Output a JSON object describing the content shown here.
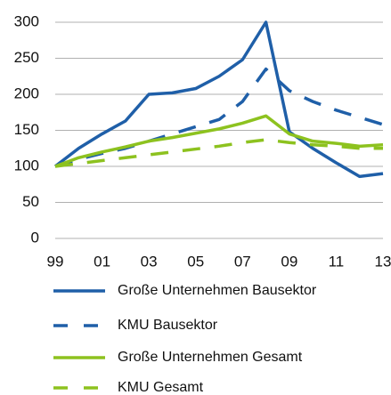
{
  "chart_data": {
    "type": "line",
    "categories": [
      "99",
      null,
      "01",
      null,
      "03",
      null,
      "05",
      null,
      "07",
      null,
      "09",
      null,
      "11",
      null,
      "13"
    ],
    "ylim": [
      0,
      300
    ],
    "yticks": [
      0,
      50,
      100,
      150,
      200,
      250,
      300
    ],
    "grid": true,
    "series": [
      {
        "name": "Große Unternehmen Bausektor",
        "color": "#1f5fa8",
        "dashed": false,
        "values": [
          100,
          125,
          145,
          163,
          200,
          202,
          208,
          225,
          248,
          300,
          148,
          125,
          105,
          86,
          90
        ]
      },
      {
        "name": "KMU Bausektor",
        "color": "#1f5fa8",
        "dashed": true,
        "values": [
          100,
          110,
          118,
          125,
          135,
          145,
          155,
          165,
          190,
          235,
          205,
          190,
          178,
          168,
          158
        ]
      },
      {
        "name": "Große Unternehmen Gesamt",
        "color": "#8dc21f",
        "dashed": false,
        "values": [
          100,
          112,
          120,
          127,
          135,
          140,
          146,
          152,
          160,
          170,
          145,
          135,
          132,
          128,
          130
        ]
      },
      {
        "name": "KMU Gesamt",
        "color": "#8dc21f",
        "dashed": true,
        "values": [
          100,
          104,
          108,
          112,
          116,
          120,
          124,
          128,
          133,
          137,
          133,
          130,
          128,
          125,
          125
        ]
      }
    ]
  }
}
